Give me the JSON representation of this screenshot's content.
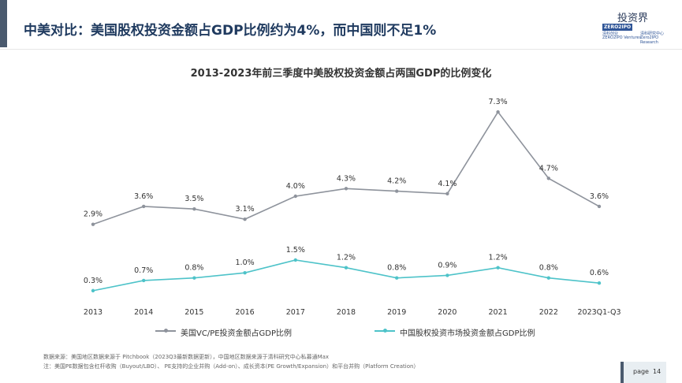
{
  "header": {
    "title": "中美对比：美国股权投资金额占GDP比例约为4%，而中国则不足1%",
    "watermark": "投资界",
    "logo": {
      "brand": "ZERO2IPO",
      "lines": [
        "清科创业",
        "ZERO2IPO Ventures",
        "清科研究中心",
        "Zero2IPO Research"
      ]
    }
  },
  "chart_data": {
    "type": "line",
    "title": "2013-2023年前三季度中美股权投资金额占两国GDP的比例变化",
    "categories": [
      "2013",
      "2014",
      "2015",
      "2016",
      "2017",
      "2018",
      "2019",
      "2020",
      "2021",
      "2022",
      "2023Q1-Q3"
    ],
    "series": [
      {
        "name": "美国VC/PE投资金额占GDP比例",
        "values": [
          2.9,
          3.6,
          3.5,
          3.1,
          4.0,
          4.3,
          4.2,
          4.1,
          7.3,
          4.7,
          3.6
        ],
        "labels": [
          "2.9%",
          "3.6%",
          "3.5%",
          "3.1%",
          "4.0%",
          "4.3%",
          "4.2%",
          "4.1%",
          "7.3%",
          "4.7%",
          "3.6%"
        ],
        "color": "#8e939c"
      },
      {
        "name": "中国股权投资市场投资金额占GDP比例",
        "values": [
          0.3,
          0.7,
          0.8,
          1.0,
          1.5,
          1.2,
          0.8,
          0.9,
          1.2,
          0.8,
          0.6
        ],
        "labels": [
          "0.3%",
          "0.7%",
          "0.8%",
          "1.0%",
          "1.5%",
          "1.2%",
          "0.8%",
          "0.9%",
          "1.2%",
          "0.8%",
          "0.6%"
        ],
        "color": "#4ec3c9"
      }
    ],
    "grid": false,
    "legend": "bottom"
  },
  "footnotes": [
    "数据来源：美国地区数据来源于 Pitchbook（2023Q3最新数据更新），中国地区数据来源于清科研究中心私募通Max",
    "注：美国PE数据包含杠杆收购（Buyout/LBO）、 PE支持的企业并购（Add-on）、成长资本(PE Growth/Expansion）和平台并购（Platform Creation）"
  ],
  "footer": {
    "page_label": "page",
    "page_number": "14"
  }
}
